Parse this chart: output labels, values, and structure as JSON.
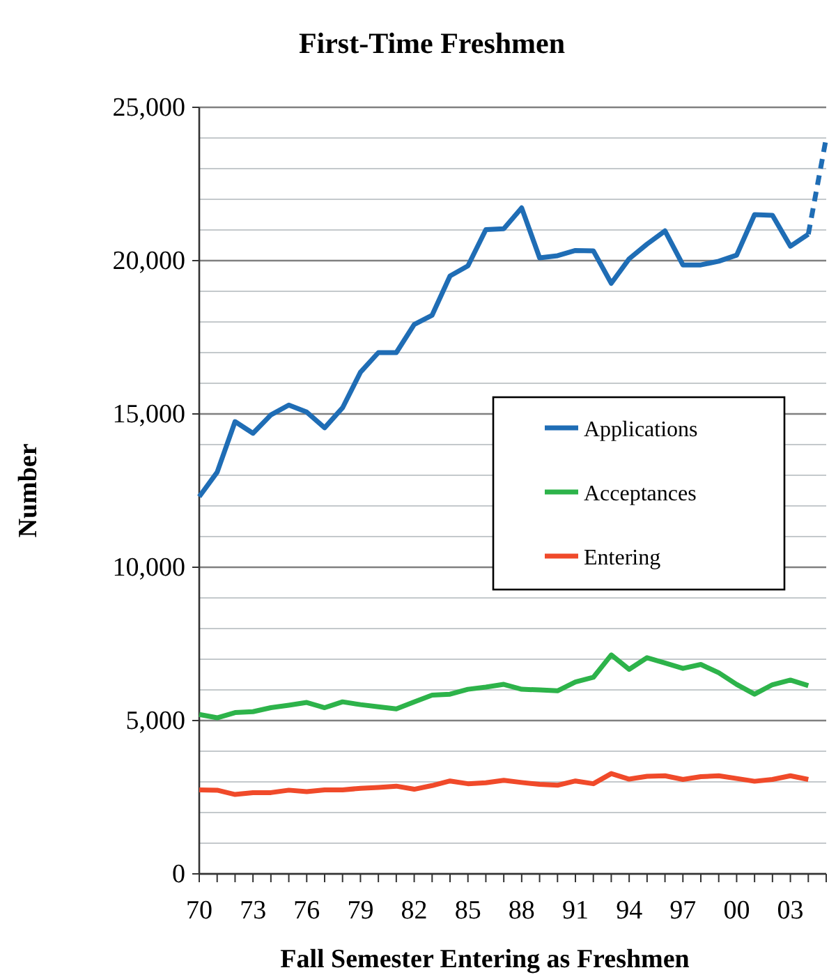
{
  "chart_data": {
    "type": "line",
    "title": "First-Time Freshmen",
    "xlabel": "Fall Semester Entering as Freshmen",
    "ylabel": "Number",
    "x": [
      1970,
      1971,
      1972,
      1973,
      1974,
      1975,
      1976,
      1977,
      1978,
      1979,
      1980,
      1981,
      1982,
      1983,
      1984,
      1985,
      1986,
      1987,
      1988,
      1989,
      1990,
      1991,
      1992,
      1993,
      1994,
      1995,
      1996,
      1997,
      1998,
      1999,
      2000,
      2001,
      2002,
      2003,
      2004
    ],
    "series": [
      {
        "name": "Applications",
        "color": "#1f6db5",
        "values": [
          12300,
          13100,
          14750,
          14370,
          14970,
          15290,
          15060,
          14550,
          15200,
          16360,
          17000,
          17000,
          17920,
          18220,
          19500,
          19830,
          21010,
          21040,
          21720,
          20090,
          20160,
          20330,
          20320,
          19260,
          20060,
          20540,
          20970,
          19860,
          19860,
          19980,
          20180,
          21500,
          21480,
          20470,
          20860
        ]
      },
      {
        "name": "Acceptances",
        "color": "#2db34a",
        "values": [
          5200,
          5090,
          5260,
          5290,
          5420,
          5500,
          5590,
          5420,
          5610,
          5520,
          5450,
          5380,
          5610,
          5830,
          5860,
          6020,
          6090,
          6180,
          6020,
          6000,
          5970,
          6260,
          6410,
          7140,
          6670,
          7050,
          6880,
          6700,
          6830,
          6560,
          6180,
          5860,
          6170,
          6320,
          6140
        ]
      },
      {
        "name": "Entering",
        "color": "#f04a2a",
        "values": [
          2740,
          2730,
          2590,
          2650,
          2650,
          2730,
          2680,
          2740,
          2740,
          2790,
          2820,
          2860,
          2760,
          2880,
          3030,
          2940,
          2970,
          3050,
          2980,
          2920,
          2890,
          3030,
          2940,
          3270,
          3090,
          3180,
          3200,
          3080,
          3170,
          3200,
          3110,
          3020,
          3080,
          3200,
          3080
        ]
      },
      {
        "color": "#1f6db5",
        "line_style": "dashed",
        "x": [
          2004,
          2005
        ],
        "values": [
          20860,
          24000
        ]
      }
    ],
    "xlim": [
      1970,
      2005
    ],
    "xticks": [
      {
        "value": 1970,
        "label": "70"
      },
      {
        "value": 1971,
        "label": null
      },
      {
        "value": 1972,
        "label": null
      },
      {
        "value": 1973,
        "label": "73"
      },
      {
        "value": 1974,
        "label": null
      },
      {
        "value": 1975,
        "label": null
      },
      {
        "value": 1976,
        "label": "76"
      },
      {
        "value": 1977,
        "label": null
      },
      {
        "value": 1978,
        "label": null
      },
      {
        "value": 1979,
        "label": "79"
      },
      {
        "value": 1980,
        "label": null
      },
      {
        "value": 1981,
        "label": null
      },
      {
        "value": 1982,
        "label": "82"
      },
      {
        "value": 1983,
        "label": null
      },
      {
        "value": 1984,
        "label": null
      },
      {
        "value": 1985,
        "label": "85"
      },
      {
        "value": 1986,
        "label": null
      },
      {
        "value": 1987,
        "label": null
      },
      {
        "value": 1988,
        "label": "88"
      },
      {
        "value": 1989,
        "label": null
      },
      {
        "value": 1990,
        "label": null
      },
      {
        "value": 1991,
        "label": "91"
      },
      {
        "value": 1992,
        "label": null
      },
      {
        "value": 1993,
        "label": null
      },
      {
        "value": 1994,
        "label": "94"
      },
      {
        "value": 1995,
        "label": null
      },
      {
        "value": 1996,
        "label": null
      },
      {
        "value": 1997,
        "label": "97"
      },
      {
        "value": 1998,
        "label": null
      },
      {
        "value": 1999,
        "label": null
      },
      {
        "value": 2000,
        "label": "00"
      },
      {
        "value": 2001,
        "label": null
      },
      {
        "value": 2002,
        "label": null
      },
      {
        "value": 2003,
        "label": "03"
      },
      {
        "value": 2004,
        "label": null
      },
      {
        "value": 2005,
        "label": null
      }
    ],
    "ylim": [
      0,
      25000
    ],
    "yticks": [
      {
        "value": 0,
        "label": "0"
      },
      {
        "value": 1000,
        "label": null
      },
      {
        "value": 2000,
        "label": null
      },
      {
        "value": 3000,
        "label": null
      },
      {
        "value": 4000,
        "label": null
      },
      {
        "value": 5000,
        "label": "5,000"
      },
      {
        "value": 6000,
        "label": null
      },
      {
        "value": 7000,
        "label": null
      },
      {
        "value": 8000,
        "label": null
      },
      {
        "value": 9000,
        "label": null
      },
      {
        "value": 10000,
        "label": "10,000"
      },
      {
        "value": 11000,
        "label": null
      },
      {
        "value": 12000,
        "label": null
      },
      {
        "value": 13000,
        "label": null
      },
      {
        "value": 14000,
        "label": null
      },
      {
        "value": 15000,
        "label": "15,000"
      },
      {
        "value": 16000,
        "label": null
      },
      {
        "value": 17000,
        "label": null
      },
      {
        "value": 18000,
        "label": null
      },
      {
        "value": 19000,
        "label": null
      },
      {
        "value": 20000,
        "label": "20,000"
      },
      {
        "value": 21000,
        "label": null
      },
      {
        "value": 22000,
        "label": null
      },
      {
        "value": 23000,
        "label": null
      },
      {
        "value": 24000,
        "label": null
      },
      {
        "value": 25000,
        "label": "25,000"
      }
    ],
    "grid": "y",
    "legend": "right",
    "line_style": "solid"
  }
}
